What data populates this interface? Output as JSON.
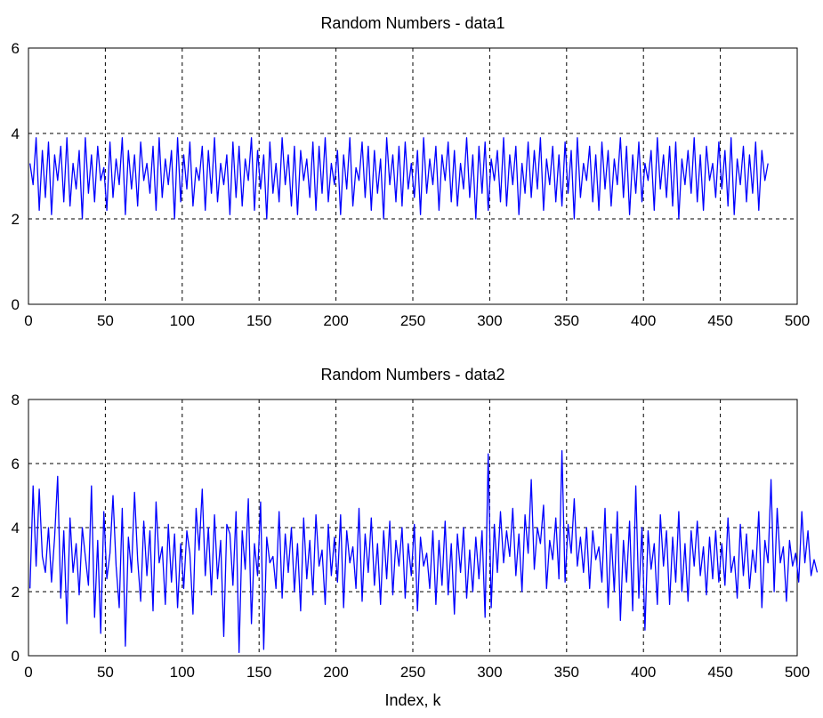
{
  "chart_data": [
    {
      "type": "line",
      "title": "Random Numbers - data1",
      "xlabel": "",
      "ylabel": "",
      "xlim": [
        0,
        500
      ],
      "ylim": [
        0,
        6
      ],
      "xticks": [
        "0",
        "50",
        "100",
        "150",
        "200",
        "250",
        "300",
        "350",
        "400",
        "450",
        "500"
      ],
      "yticks": [
        "0",
        "2",
        "4",
        "6"
      ],
      "grid": true,
      "series": [
        {
          "color": "#0000ff",
          "x_start": 1,
          "x_step": 2,
          "values": [
            3.3,
            2.8,
            3.9,
            2.2,
            3.6,
            2.5,
            3.8,
            2.1,
            3.5,
            2.9,
            3.7,
            2.4,
            3.9,
            2.3,
            3.3,
            2.7,
            3.6,
            2.0,
            3.9,
            2.6,
            3.5,
            2.4,
            3.7,
            2.9,
            3.2,
            2.2,
            3.8,
            2.5,
            3.4,
            2.8,
            3.9,
            2.1,
            3.6,
            2.7,
            3.5,
            2.3,
            3.8,
            2.9,
            3.3,
            2.6,
            3.7,
            2.2,
            3.9,
            2.5,
            3.4,
            2.8,
            3.6,
            2.0,
            3.9,
            2.4,
            3.5,
            2.7,
            3.8,
            2.3,
            3.2,
            2.9,
            3.7,
            2.2,
            3.6,
            2.6,
            3.9,
            2.4,
            3.3,
            2.8,
            3.5,
            2.1,
            3.8,
            2.5,
            3.7,
            2.3,
            3.4,
            2.9,
            3.9,
            2.2,
            3.6,
            2.7,
            3.5,
            2.0,
            3.8,
            2.6,
            3.3,
            2.4,
            3.9,
            2.8,
            3.5,
            2.3,
            3.7,
            2.1,
            3.6,
            2.9,
            3.4,
            2.5,
            3.8,
            2.2,
            3.7,
            2.6,
            3.9,
            2.4,
            3.3,
            2.8,
            3.6,
            2.1,
            3.5,
            2.7,
            3.9,
            2.3,
            3.2,
            2.9,
            3.8,
            2.5,
            3.7,
            2.2,
            3.6,
            2.6,
            3.4,
            2.0,
            3.9,
            2.8,
            3.5,
            2.4,
            3.7,
            2.3,
            3.8,
            2.7,
            3.3,
            2.5,
            3.6,
            2.1,
            3.9,
            2.6,
            3.4,
            2.8,
            3.7,
            2.2,
            3.5,
            2.9,
            3.8,
            2.4,
            3.6,
            2.3,
            3.3,
            2.7,
            3.9,
            2.5,
            3.5,
            2.0,
            3.7,
            2.6,
            3.8,
            2.2,
            3.4,
            2.9,
            3.6,
            2.4,
            3.9,
            2.3,
            3.5,
            2.8,
            3.7,
            2.1,
            3.3,
            2.6,
            3.8,
            2.5,
            3.6,
            2.7,
            3.9,
            2.2,
            3.4,
            2.8,
            3.7,
            2.4,
            3.5,
            2.3,
            3.8,
            2.6,
            3.6,
            2.0,
            3.9,
            2.5,
            3.3,
            2.9,
            3.7,
            2.4,
            3.5,
            2.2,
            3.8,
            2.7,
            3.6,
            2.3,
            3.4,
            2.8,
            3.9,
            2.5,
            3.7,
            2.1,
            3.5,
            2.6,
            3.8,
            2.4,
            3.3,
            2.9,
            3.6,
            2.2,
            3.9,
            2.7,
            3.5,
            2.5,
            3.7,
            2.3,
            3.8,
            2.0,
            3.4,
            2.8,
            3.6,
            2.6,
            3.9,
            2.4,
            3.5,
            2.2,
            3.7,
            2.9,
            3.3,
            2.5,
            3.8,
            2.7,
            3.6,
            2.3,
            3.9,
            2.1,
            3.4,
            2.8,
            3.7,
            2.4,
            3.5,
            2.6,
            3.8,
            2.2,
            3.6,
            2.9,
            3.3
          ]
        }
      ]
    },
    {
      "type": "line",
      "title": "Random Numbers - data2",
      "xlabel": "Index, k",
      "ylabel": "",
      "xlim": [
        0,
        500
      ],
      "ylim": [
        0,
        8
      ],
      "xticks": [
        "0",
        "50",
        "100",
        "150",
        "200",
        "250",
        "300",
        "350",
        "400",
        "450",
        "500"
      ],
      "yticks": [
        "0",
        "2",
        "4",
        "6",
        "8"
      ],
      "grid": true,
      "series": [
        {
          "color": "#0000ff",
          "x_start": 1,
          "x_step": 2,
          "values": [
            2.1,
            5.3,
            2.8,
            5.2,
            3.1,
            2.6,
            4.0,
            2.3,
            3.7,
            5.6,
            1.8,
            3.9,
            1.0,
            4.3,
            2.6,
            3.5,
            1.9,
            4.0,
            3.1,
            2.2,
            5.3,
            1.2,
            3.6,
            0.7,
            4.5,
            2.4,
            3.2,
            5.0,
            2.8,
            1.5,
            4.6,
            0.3,
            3.7,
            2.6,
            5.1,
            3.0,
            1.7,
            4.2,
            2.5,
            3.9,
            1.4,
            4.8,
            2.9,
            3.4,
            1.6,
            4.1,
            2.3,
            3.8,
            1.5,
            3.5,
            2.1,
            3.9,
            3.2,
            1.3,
            4.6,
            3.3,
            5.2,
            2.5,
            4.0,
            1.9,
            4.4,
            2.4,
            3.6,
            0.6,
            4.1,
            3.8,
            2.2,
            4.5,
            0.1,
            3.9,
            2.7,
            4.9,
            1.0,
            3.5,
            2.5,
            4.8,
            0.2,
            3.7,
            2.9,
            3.1,
            2.1,
            4.5,
            1.8,
            3.8,
            2.6,
            4.0,
            2.0,
            3.5,
            1.4,
            4.3,
            2.4,
            3.6,
            1.9,
            4.4,
            2.8,
            3.3,
            1.6,
            4.1,
            2.5,
            3.7,
            2.3,
            4.4,
            1.5,
            3.9,
            2.9,
            3.4,
            2.1,
            4.6,
            1.7,
            3.8,
            2.6,
            4.3,
            2.2,
            3.5,
            1.6,
            3.9,
            2.4,
            4.2,
            1.9,
            3.6,
            2.8,
            4.0,
            1.8,
            3.5,
            2.5,
            4.1,
            1.4,
            3.7,
            2.8,
            3.2,
            2.1,
            3.9,
            1.6,
            3.6,
            2.2,
            4.2,
            1.9,
            3.5,
            1.3,
            3.8,
            2.6,
            4.0,
            1.8,
            3.3,
            2.0,
            3.7,
            2.4,
            3.9,
            1.2,
            6.3,
            1.5,
            4.1,
            2.6,
            4.5,
            2.9,
            3.9,
            3.1,
            4.6,
            2.5,
            3.8,
            2.0,
            4.4,
            3.2,
            5.5,
            2.7,
            4.0,
            3.5,
            4.7,
            2.1,
            3.6,
            3.0,
            4.3,
            2.4,
            6.4,
            2.3,
            4.1,
            3.2,
            4.9,
            2.8,
            3.7,
            2.6,
            4.0,
            2.1,
            3.9,
            3.0,
            3.4,
            2.3,
            4.6,
            1.5,
            3.8,
            2.0,
            4.5,
            1.1,
            3.6,
            2.3,
            4.2,
            1.4,
            5.3,
            1.8,
            4.0,
            0.8,
            3.9,
            2.7,
            3.5,
            1.6,
            4.4,
            2.8,
            3.9,
            1.6,
            3.7,
            2.3,
            4.5,
            2.0,
            3.5,
            1.7,
            3.9,
            2.8,
            4.2,
            2.5,
            3.4,
            1.9,
            3.7,
            2.4,
            3.9,
            2.3,
            3.5,
            2.2,
            4.3,
            2.6,
            3.1,
            1.8,
            4.1,
            2.5,
            3.8,
            2.1,
            3.3,
            2.6,
            4.5,
            1.5,
            3.6,
            2.9,
            5.5,
            2.0,
            4.6,
            2.9,
            3.4,
            1.7,
            3.6,
            2.8,
            3.2,
            2.3,
            4.5,
            2.9,
            3.9,
            2.5,
            3.0,
            2.6
          ]
        }
      ]
    }
  ]
}
